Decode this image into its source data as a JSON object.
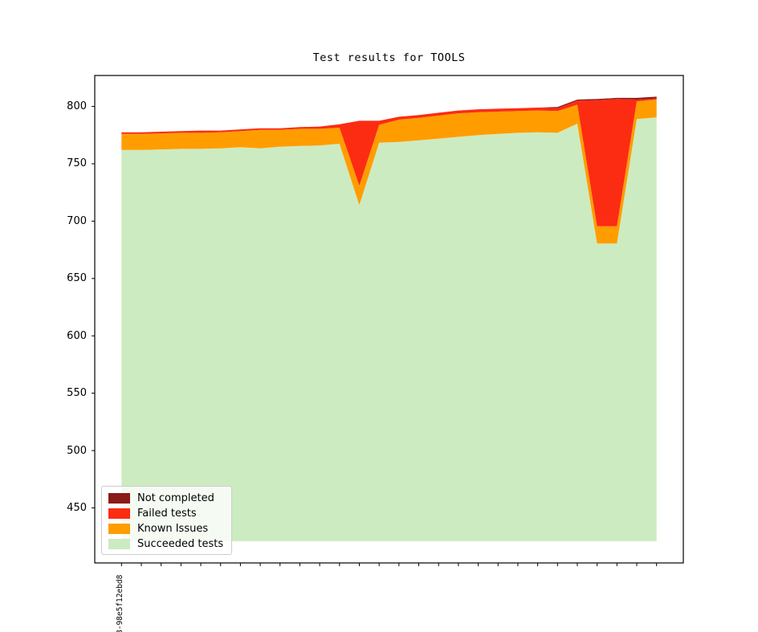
{
  "title": "Test results for TOOLS",
  "x_axis": {
    "first_tick_label": "8-98e5f12ebd8",
    "num_ticks": 28,
    "other_tick_labels_visible": false
  },
  "y_axis": {
    "ticks": [
      450,
      500,
      550,
      600,
      650,
      700,
      750,
      800
    ]
  },
  "legend": {
    "position": "lower left",
    "entries": [
      {
        "label": "Not completed",
        "color": "#8b1a1a"
      },
      {
        "label": "Failed tests",
        "color": "#fc2c12"
      },
      {
        "label": "Known Issues",
        "color": "#ff9d00"
      },
      {
        "label": "Succeeded tests",
        "color": "#cdebc1"
      }
    ]
  },
  "chart_data": {
    "type": "area",
    "stacked": true,
    "title": "Test results for TOOLS",
    "xlabel": "",
    "ylabel": "",
    "grid": false,
    "baseline": 421,
    "ylim": [
      402,
      827
    ],
    "xlim": [
      -1.35,
      28.35
    ],
    "x": [
      0,
      1,
      2,
      3,
      4,
      5,
      6,
      7,
      8,
      9,
      10,
      11,
      12,
      13,
      14,
      15,
      16,
      17,
      18,
      19,
      20,
      21,
      22,
      23,
      24,
      25,
      26,
      27
    ],
    "series": [
      {
        "name": "Succeeded tests",
        "color": "#cdebc1",
        "values": [
          762,
          762,
          762.5,
          763,
          763,
          763.5,
          764.5,
          763.5,
          765,
          765.5,
          766,
          767.5,
          714,
          768.5,
          769,
          770.5,
          772,
          773.5,
          775,
          776,
          777,
          777.5,
          777,
          785,
          680.5,
          680.5,
          789,
          790.5
        ]
      },
      {
        "name": "Known Issues",
        "color": "#ff9d00",
        "values": [
          14,
          14,
          14,
          14,
          14,
          14,
          14,
          16,
          14.5,
          15,
          14.5,
          14,
          17,
          15.5,
          19.5,
          19.5,
          20,
          20.5,
          20,
          19.5,
          19,
          19,
          19,
          16.5,
          15,
          15,
          15.5,
          15.5
        ]
      },
      {
        "name": "Failed tests",
        "color": "#fc2c12",
        "values": [
          1.5,
          1.5,
          1.5,
          1.5,
          2,
          1.5,
          1.5,
          1.5,
          1.5,
          1.5,
          2,
          3,
          56.5,
          3.5,
          2.5,
          2.5,
          2.5,
          2.5,
          2.5,
          2.5,
          2.5,
          2.5,
          2.5,
          3.5,
          110,
          111,
          1.5,
          1
        ]
      },
      {
        "name": "Not completed",
        "color": "#8b1a1a",
        "values": [
          0,
          0,
          0,
          0,
          0,
          0,
          0,
          0,
          0,
          0,
          0,
          0,
          0,
          0,
          0,
          0,
          0,
          0,
          0,
          0,
          0,
          0,
          1,
          1,
          1,
          1,
          1.5,
          1.5
        ]
      }
    ],
    "note": "Bands stack bottom-to-top: Succeeded, Known Issues, Failed, Not completed. Succeeded band fills down to baseline value."
  }
}
